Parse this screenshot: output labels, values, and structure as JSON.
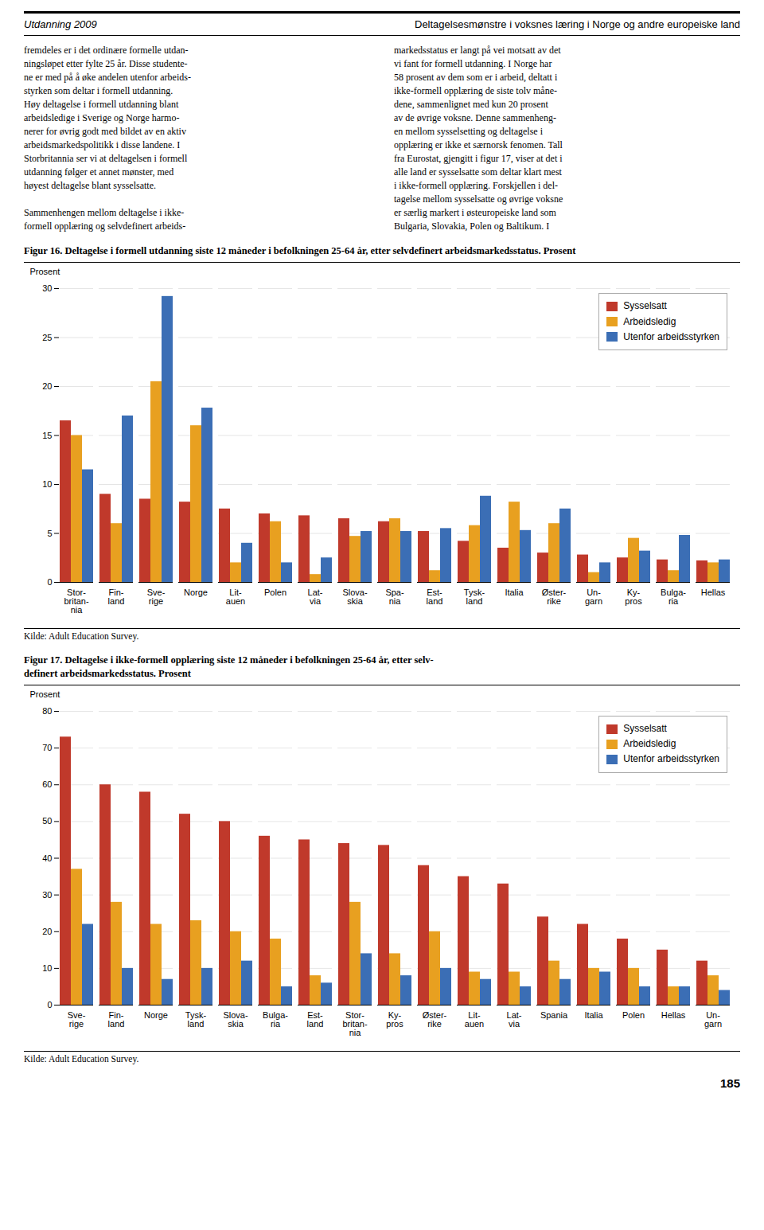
{
  "annotations": [
    "Utdanning 2009",
    "Deltagelsesmønstre i voksnes læring i Norge og andre europeiske land",
    "fremdeles er i det ordinære formelle utdan-\nningsløpet etter fylte 25 år. Disse studente-\nne er med på å øke andelen utenfor arbeids-\nstyrken som deltar i formell utdanning.\nHøy deltagelse i formell utdanning blant\narbeidsledige i Sverige og Norge harmo-\nnerer for øvrig godt med bildet av en aktiv\narbeidsmarkedspolitikk i disse landene. I\nStorbritannia ser vi at deltagelsen i formell\nutdanning følger et annet mønster, med\nhøyest deltagelse blant sysselsatte.\n\nSammenhengen mellom deltagelse i ikke-\nformell opplæring og selvdefinert arbeids-",
    "markedsstatus er langt på vei motsatt av det\nvi fant for formell utdanning. I Norge har\n58 prosent av dem som er i arbeid, deltatt i\nikke-formell opplæring de siste tolv måne-\ndene, sammenlignet med kun 20 prosent\nav de øvrige voksne. Denne sammenheng-\nen mellom sysselsetting og deltagelse i\nopplæring er ikke et særnorsk fenomen. Tall\nfra Eurostat, gjengitt i figur 17, viser at det i\nalle land er sysselsatte som deltar klart mest\ni ikke-formell opplæring. Forskjellen i del-\ntagelse mellom sysselsatte og øvrige voksne\ner særlig markert i østeuropeiske land som\nBulgaria, Slovakia, Polen og Baltikum. I",
    "185"
  ],
  "chart_data": [
    {
      "type": "bar",
      "title": "Figur 16. Deltagelse i formell utdanning siste 12 måneder i befolkningen 25-64 år, etter selvdefinert arbeidsmarkedsstatus. Prosent",
      "ylabel": "Prosent",
      "categories": [
        "Stor-\nbritan-\nnia",
        "Fin-\nland",
        "Sve-\nrige",
        "Norge",
        "Lit-\nauen",
        "Polen",
        "Lat-\nvia",
        "Slova-\nskia",
        "Spa-\nnia",
        "Est-\nland",
        "Tysk-\nland",
        "Italia",
        "Øster-\nrike",
        "Un-\ngarn",
        "Ky-\npros",
        "Bulga-\nria",
        "Hellas"
      ],
      "series": [
        {
          "name": "Sysselsatt",
          "color": "#c0392b",
          "values": [
            16.5,
            9.0,
            8.5,
            8.2,
            7.5,
            7.0,
            6.8,
            6.5,
            6.2,
            5.2,
            4.2,
            3.5,
            3.0,
            2.8,
            2.5,
            2.3,
            2.2
          ]
        },
        {
          "name": "Arbeidsledig",
          "color": "#e8a020",
          "values": [
            15.0,
            6.0,
            20.5,
            16.0,
            2.0,
            6.2,
            0.8,
            4.7,
            6.5,
            1.2,
            5.8,
            8.2,
            6.0,
            1.0,
            4.5,
            1.2,
            2.0
          ]
        },
        {
          "name": "Utenfor arbeidsstyrken",
          "color": "#3b6eb5",
          "values": [
            11.5,
            17.0,
            29.2,
            17.8,
            4.0,
            2.0,
            2.5,
            5.2,
            5.2,
            5.5,
            8.8,
            5.3,
            7.5,
            2.0,
            3.2,
            4.8,
            2.3
          ]
        }
      ],
      "ylim": [
        0,
        30
      ],
      "yticks": [
        0,
        5,
        10,
        15,
        20,
        25,
        30
      ],
      "grid": true,
      "legend": "upper right",
      "annotations": [
        "Kilde: Adult Education Survey."
      ]
    },
    {
      "type": "bar",
      "title": "Figur 17. Deltagelse i ikke-formell opplæring siste 12 måneder i befolkningen 25-64 år, etter selv-\ndefinert arbeidsmarkedsstatus. Prosent",
      "ylabel": "Prosent",
      "categories": [
        "Sve-\nrige",
        "Fin-\nland",
        "Norge",
        "Tysk-\nland",
        "Slova-\nskia",
        "Bulga-\nria",
        "Est-\nland",
        "Stor-\nbritan-\nnia",
        "Ky-\npros",
        "Øster-\nrike",
        "Lit-\nauen",
        "Lat-\nvia",
        "Spania",
        "Italia",
        "Polen",
        "Hellas",
        "Un-\ngarn"
      ],
      "series": [
        {
          "name": "Sysselsatt",
          "color": "#c0392b",
          "values": [
            73.0,
            60.0,
            58.0,
            52.0,
            50.0,
            46.0,
            45.0,
            44.0,
            43.5,
            38.0,
            35.0,
            33.0,
            24.0,
            22.0,
            18.0,
            15.0,
            12.0
          ]
        },
        {
          "name": "Arbeidsledig",
          "color": "#e8a020",
          "values": [
            37.0,
            28.0,
            22.0,
            23.0,
            20.0,
            18.0,
            8.0,
            28.0,
            14.0,
            20.0,
            9.0,
            9.0,
            12.0,
            10.0,
            10.0,
            5.0,
            8.0
          ]
        },
        {
          "name": "Utenfor arbeidsstyrken",
          "color": "#3b6eb5",
          "values": [
            22.0,
            10.0,
            7.0,
            10.0,
            12.0,
            5.0,
            6.0,
            14.0,
            8.0,
            10.0,
            7.0,
            5.0,
            7.0,
            9.0,
            5.0,
            5.0,
            4.0
          ]
        }
      ],
      "ylim": [
        0,
        80
      ],
      "yticks": [
        0,
        10,
        20,
        30,
        40,
        50,
        60,
        70,
        80
      ],
      "grid": true,
      "legend": "upper right",
      "annotations": [
        "Kilde: Adult Education Survey."
      ]
    }
  ]
}
